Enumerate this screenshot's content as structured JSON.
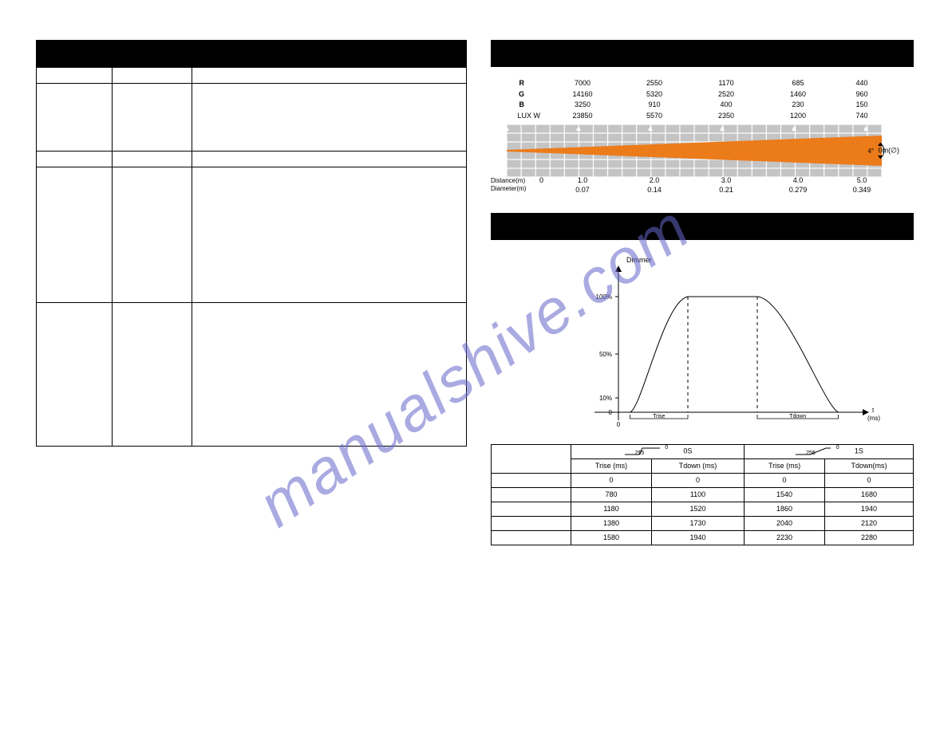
{
  "watermark": "manualshive.com",
  "photometric": {
    "rows": [
      {
        "label": "R",
        "values": [
          "7000",
          "2550",
          "1170",
          "685",
          "440"
        ]
      },
      {
        "label": "G",
        "values": [
          "14160",
          "5320",
          "2520",
          "1460",
          "960"
        ]
      },
      {
        "label": "B",
        "values": [
          "3250",
          "910",
          "400",
          "230",
          "150"
        ]
      },
      {
        "label": "LUX  W",
        "values": [
          "23850",
          "5570",
          "2350",
          "1200",
          "740"
        ]
      }
    ],
    "distance_label": "Distance(m)",
    "diameter_label": "Diameter(m)",
    "distances": [
      "0",
      "1.0",
      "2.0",
      "3.0",
      "4.0",
      "5.0"
    ],
    "diameters": [
      "",
      "0.07",
      "0.14",
      "0.21",
      "0.279",
      "0.349"
    ],
    "right_label": "0m(∅)",
    "beam_fill": "#ec7b1a",
    "grid_cell_fill": "#c4c4c4",
    "grid_gap_fill": "#ffffff",
    "beam_angle_deg": 4
  },
  "dimmer_curve": {
    "title": "Dimmer",
    "y_ticks": [
      "100%",
      "50%",
      "10%",
      "0"
    ],
    "x_axis_end_label": "t\n(ms)",
    "x_origin": "0",
    "rise_label": "Trise",
    "down_label": "Tdown",
    "curve": {
      "stroke": "#000000",
      "width": 1,
      "rise_start_x": 0.05,
      "plateau_start_x": 0.3,
      "plateau_end_x": 0.6,
      "fall_end_x": 0.95,
      "plateau_y": 1.0
    }
  },
  "dimmer_table": {
    "step_labels": {
      "from": "0",
      "to": "255"
    },
    "groups": [
      {
        "duration": "0S",
        "sub": [
          "Trise (ms)",
          "Tdown (ms)"
        ]
      },
      {
        "duration": "1S",
        "sub": [
          "Trise (ms)",
          "Tdown(ms)"
        ]
      }
    ],
    "rows": [
      [
        "",
        "0",
        "0",
        "0",
        "0"
      ],
      [
        "",
        "780",
        "1100",
        "1540",
        "1680"
      ],
      [
        "",
        "1180",
        "1520",
        "1860",
        "1940"
      ],
      [
        "",
        "1380",
        "1730",
        "2040",
        "2120"
      ],
      [
        "",
        "1580",
        "1940",
        "2230",
        "2280"
      ]
    ]
  },
  "colors": {
    "watermark": "#6666cc",
    "black": "#000000"
  }
}
